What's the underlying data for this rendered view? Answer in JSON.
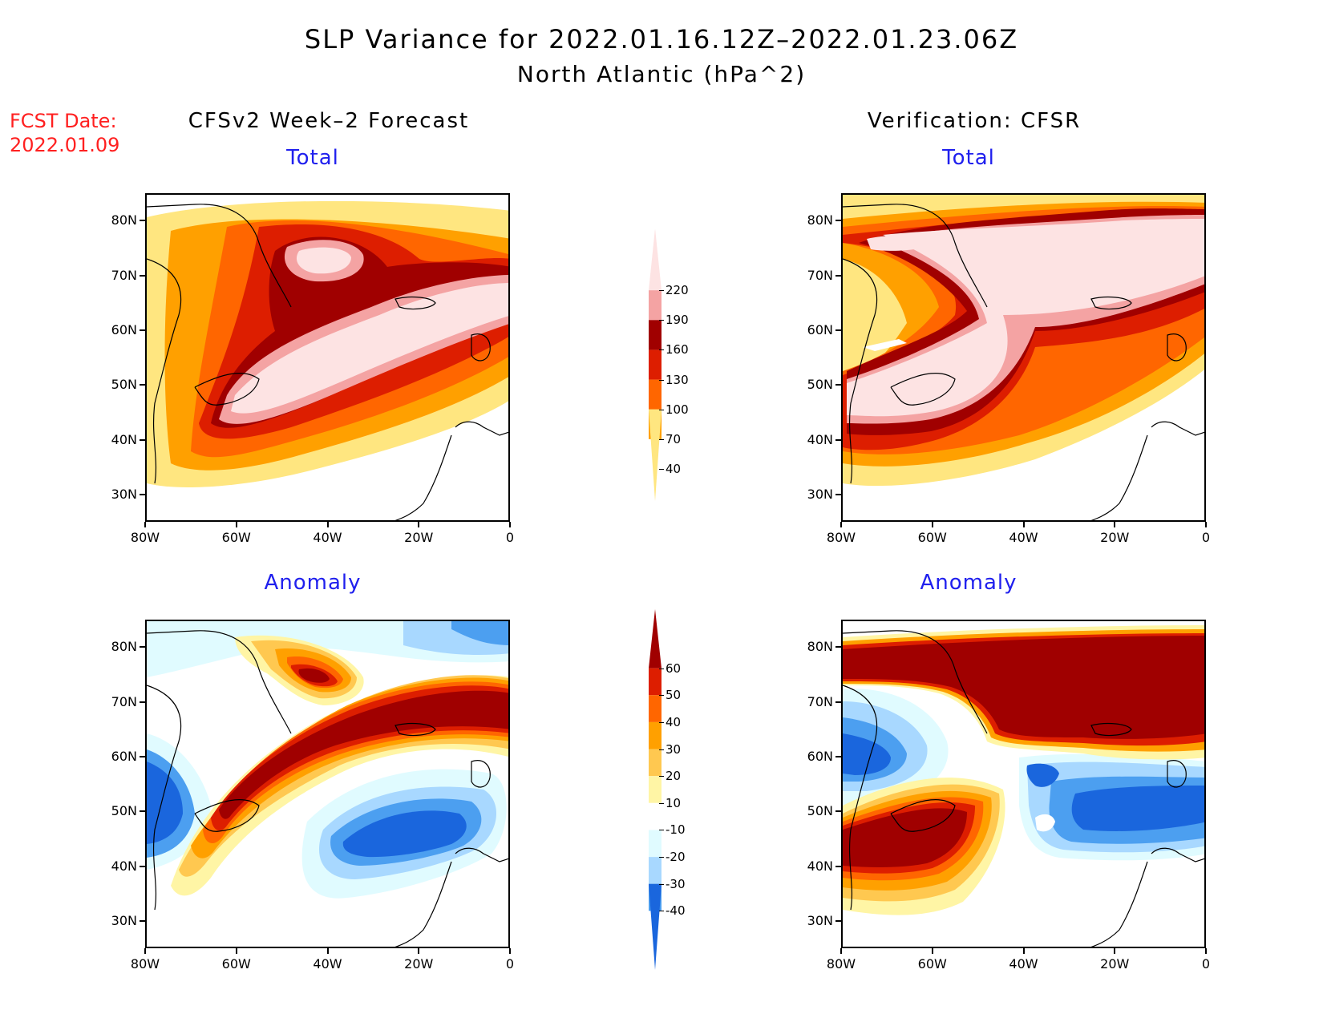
{
  "title": {
    "line1": "SLP Variance for 2022.01.16.12Z–2022.01.23.06Z",
    "line2": "North Atlantic (hPa^2)"
  },
  "fcst_date": {
    "label": "FCST Date:",
    "value": "2022.01.09"
  },
  "columns": {
    "left": "CFSv2 Week–2 Forecast",
    "right": "Verification: CFSR"
  },
  "panels": [
    {
      "id": "forecast-total",
      "title": "Total"
    },
    {
      "id": "verification-total",
      "title": "Total"
    },
    {
      "id": "forecast-anomaly",
      "title": "Anomaly"
    },
    {
      "id": "verification-anomaly",
      "title": "Anomaly"
    }
  ],
  "axes": {
    "lat_labels": [
      "80N",
      "70N",
      "60N",
      "50N",
      "40N",
      "30N"
    ],
    "lon_labels": [
      "80W",
      "60W",
      "40W",
      "20W",
      "0"
    ]
  },
  "colorbars": {
    "total": {
      "labels": [
        "220",
        "190",
        "160",
        "130",
        "100",
        "70",
        "40"
      ],
      "colors": [
        "#fde3e3",
        "#f4a3a3",
        "#a00000",
        "#dd1e00",
        "#ff6600",
        "#ffa000",
        "#ffe680"
      ]
    },
    "anomaly": {
      "labels": [
        "60",
        "50",
        "40",
        "30",
        "20",
        "10",
        "-10",
        "-20",
        "-30",
        "-40"
      ],
      "colors": [
        "#a00000",
        "#dd1e00",
        "#ff6600",
        "#ffa000",
        "#ffc850",
        "#fff5a5",
        "#ffffff",
        "#e0fbff",
        "#a8d8ff",
        "#4c9ff0",
        "#1a66dd"
      ]
    }
  },
  "colors": {
    "title_red": "#ff2020",
    "panel_title_blue": "#2020ee",
    "land_line": "#000000"
  }
}
